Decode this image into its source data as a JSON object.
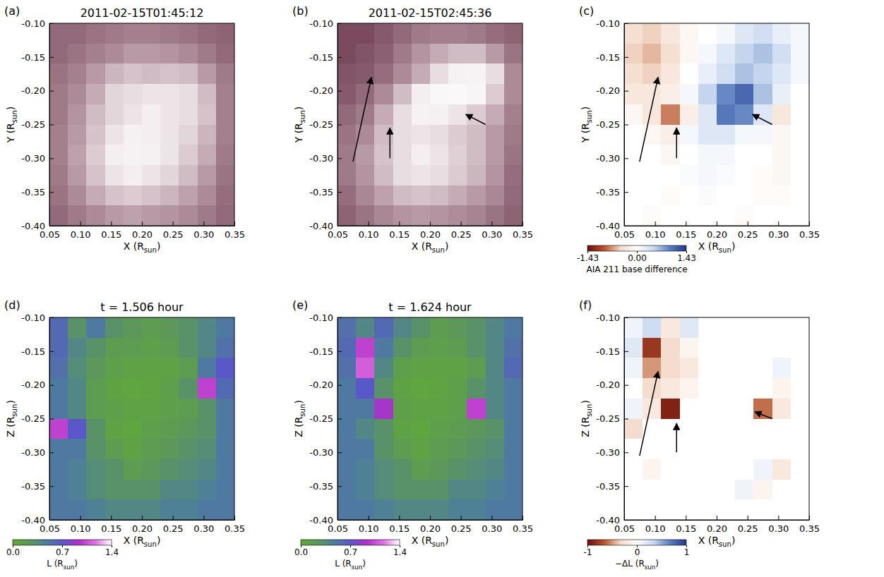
{
  "chart_data": [
    {
      "type": "heatmap",
      "label": "(a)",
      "title": "2011-02-15T01:45:12",
      "xlabel": [
        "X (R",
        "sun",
        ")"
      ],
      "ylabel": [
        "Y (R",
        "sun",
        ")"
      ],
      "xlim": [
        0.05,
        0.35
      ],
      "ylim": [
        -0.4,
        -0.1
      ],
      "xticks": [
        0.05,
        {
          "value": 0.1,
          "label": "0.10"
        },
        0.15,
        {
          "value": 0.2,
          "label": "0.20"
        },
        0.25,
        {
          "value": 0.3,
          "label": "0.30"
        },
        0.35
      ],
      "yticks": [
        {
          "value": -0.4,
          "label": "-0.40"
        },
        -0.35,
        {
          "value": -0.3,
          "label": "-0.30"
        },
        -0.25,
        {
          "value": -0.2,
          "label": "-0.20"
        },
        -0.15,
        {
          "value": -0.1,
          "label": "-0.10"
        }
      ],
      "clim": [
        0,
        1
      ],
      "colors": [
        "#3a1a28",
        "#7a4a5e",
        "#b89aa6",
        "#f4eef0",
        "#ffffff"
      ],
      "cells": [
        [
          0.35,
          0.35,
          0.38,
          0.4,
          0.42,
          0.42,
          0.4,
          0.38,
          0.35,
          0.33
        ],
        [
          0.35,
          0.38,
          0.42,
          0.45,
          0.5,
          0.5,
          0.48,
          0.45,
          0.4,
          0.35
        ],
        [
          0.38,
          0.42,
          0.5,
          0.58,
          0.62,
          0.6,
          0.62,
          0.6,
          0.5,
          0.4
        ],
        [
          0.4,
          0.45,
          0.55,
          0.68,
          0.7,
          0.72,
          0.72,
          0.7,
          0.6,
          0.42
        ],
        [
          0.4,
          0.48,
          0.6,
          0.68,
          0.72,
          0.75,
          0.72,
          0.7,
          0.62,
          0.42
        ],
        [
          0.42,
          0.5,
          0.62,
          0.72,
          0.78,
          0.75,
          0.72,
          0.68,
          0.58,
          0.42
        ],
        [
          0.42,
          0.52,
          0.65,
          0.75,
          0.8,
          0.78,
          0.72,
          0.65,
          0.55,
          0.4
        ],
        [
          0.4,
          0.5,
          0.62,
          0.72,
          0.75,
          0.72,
          0.68,
          0.6,
          0.5,
          0.38
        ],
        [
          0.38,
          0.45,
          0.55,
          0.62,
          0.65,
          0.62,
          0.58,
          0.52,
          0.45,
          0.36
        ],
        [
          0.35,
          0.4,
          0.45,
          0.5,
          0.52,
          0.5,
          0.48,
          0.45,
          0.4,
          0.35
        ]
      ]
    },
    {
      "type": "heatmap",
      "label": "(b)",
      "title": "2011-02-15T02:45:36",
      "xlabel": [
        "X (R",
        "sun",
        ")"
      ],
      "ylabel": [
        "Y (R",
        "sun",
        ")"
      ],
      "xlim": [
        0.05,
        0.35
      ],
      "ylim": [
        -0.4,
        -0.1
      ],
      "xticks": [
        0.05,
        {
          "value": 0.1,
          "label": "0.10"
        },
        0.15,
        {
          "value": 0.2,
          "label": "0.20"
        },
        0.25,
        {
          "value": 0.3,
          "label": "0.30"
        },
        0.35
      ],
      "yticks": [
        {
          "value": -0.4,
          "label": "-0.40"
        },
        -0.35,
        {
          "value": -0.3,
          "label": "-0.30"
        },
        -0.25,
        {
          "value": -0.2,
          "label": "-0.20"
        },
        -0.15,
        {
          "value": -0.1,
          "label": "-0.10"
        }
      ],
      "clim": [
        0,
        1
      ],
      "colors": [
        "#3a1a28",
        "#7a4a5e",
        "#b89aa6",
        "#f4eef0",
        "#ffffff"
      ],
      "cells": [
        [
          0.25,
          0.25,
          0.3,
          0.35,
          0.4,
          0.42,
          0.42,
          0.4,
          0.36,
          0.33
        ],
        [
          0.25,
          0.28,
          0.32,
          0.4,
          0.48,
          0.55,
          0.6,
          0.6,
          0.5,
          0.38
        ],
        [
          0.28,
          0.3,
          0.36,
          0.45,
          0.55,
          0.7,
          0.8,
          0.82,
          0.7,
          0.45
        ],
        [
          0.3,
          0.35,
          0.45,
          0.6,
          0.75,
          0.88,
          0.9,
          0.85,
          0.65,
          0.45
        ],
        [
          0.35,
          0.4,
          0.55,
          0.7,
          0.8,
          0.78,
          0.72,
          0.65,
          0.55,
          0.42
        ],
        [
          0.38,
          0.45,
          0.6,
          0.7,
          0.72,
          0.7,
          0.65,
          0.6,
          0.5,
          0.4
        ],
        [
          0.4,
          0.5,
          0.62,
          0.7,
          0.75,
          0.72,
          0.66,
          0.6,
          0.5,
          0.38
        ],
        [
          0.4,
          0.48,
          0.6,
          0.7,
          0.72,
          0.7,
          0.65,
          0.58,
          0.48,
          0.36
        ],
        [
          0.36,
          0.44,
          0.52,
          0.6,
          0.62,
          0.6,
          0.55,
          0.5,
          0.44,
          0.35
        ],
        [
          0.33,
          0.38,
          0.44,
          0.48,
          0.5,
          0.48,
          0.46,
          0.43,
          0.38,
          0.33
        ]
      ],
      "arrows": [
        [
          0.075,
          -0.305,
          0.105,
          -0.18
        ],
        [
          0.135,
          -0.3,
          0.135,
          -0.255
        ],
        [
          0.29,
          -0.25,
          0.258,
          -0.235
        ]
      ]
    },
    {
      "type": "heatmap",
      "label": "(c)",
      "xlabel": [
        "X (R",
        "sun",
        ")"
      ],
      "ylabel": [
        "Y (R",
        "sun",
        ")"
      ],
      "xlim": [
        0.05,
        0.35
      ],
      "ylim": [
        -0.4,
        -0.1
      ],
      "xticks": [
        0.05,
        {
          "value": 0.1,
          "label": "0.10"
        },
        0.15,
        {
          "value": 0.2,
          "label": "0.20"
        },
        0.25,
        {
          "value": 0.3,
          "label": "0.30"
        },
        0.35
      ],
      "yticks": [
        {
          "value": -0.4,
          "label": "-0.40"
        },
        -0.35,
        {
          "value": -0.3,
          "label": "-0.30"
        },
        -0.25,
        {
          "value": -0.2,
          "label": "-0.20"
        },
        -0.15,
        {
          "value": -0.1,
          "label": "-0.10"
        }
      ],
      "colorbar": {
        "lim": [
          -1.43,
          1.43
        ],
        "ticks": [
          -1.43,
          {
            "value": 0,
            "label": "0.00"
          },
          1.43
        ],
        "label": [
          "AIA 211 base difference"
        ]
      },
      "colors": [
        "#6b0d0d",
        "#b5542c",
        "#f3d9c8",
        "#ffffff",
        "#c9d9ef",
        "#5a7fc0",
        "#26358a"
      ],
      "cells": [
        [
          -0.4,
          -0.5,
          -0.3,
          -0.1,
          0,
          0.1,
          0.3,
          0.4,
          0.2,
          0.1
        ],
        [
          -0.5,
          -0.6,
          -0.4,
          -0.1,
          0.1,
          0.3,
          0.5,
          0.6,
          0.4,
          0.1
        ],
        [
          -0.4,
          -0.5,
          -0.3,
          0,
          0.2,
          0.4,
          0.6,
          0.5,
          0.3,
          0.1
        ],
        [
          -0.3,
          -0.3,
          -0.2,
          0.1,
          0.5,
          0.9,
          1.1,
          0.6,
          0.2,
          0
        ],
        [
          -0.1,
          -0.3,
          -0.8,
          -0.2,
          0.3,
          1.0,
          0.9,
          0.3,
          -0.3,
          0
        ],
        [
          0,
          -0.1,
          -0.2,
          0.1,
          0.3,
          0.3,
          0.1,
          0.1,
          -0.1,
          0
        ],
        [
          0,
          0,
          -0.1,
          0,
          0.1,
          0.1,
          0,
          0,
          -0.1,
          0
        ],
        [
          0,
          0,
          0,
          0.05,
          0.1,
          0.05,
          0,
          -0.05,
          -0.1,
          0
        ],
        [
          0,
          0,
          -0.05,
          0,
          0.05,
          0,
          0,
          -0.05,
          -0.05,
          0
        ],
        [
          0,
          -0.05,
          0,
          0,
          0,
          0,
          -0.05,
          0,
          0,
          0
        ]
      ],
      "arrows": [
        [
          0.075,
          -0.305,
          0.105,
          -0.18
        ],
        [
          0.135,
          -0.3,
          0.135,
          -0.255
        ],
        [
          0.29,
          -0.25,
          0.258,
          -0.235
        ]
      ]
    },
    {
      "type": "heatmap",
      "label": "(d)",
      "title": "t = 1.506 hour",
      "xlabel": [
        "X (R",
        "sun",
        ")"
      ],
      "ylabel": [
        "Z (R",
        "sun",
        ")"
      ],
      "xlim": [
        0.05,
        0.35
      ],
      "ylim": [
        -0.4,
        -0.1
      ],
      "xticks": [
        0.05,
        {
          "value": 0.1,
          "label": "0.10"
        },
        0.15,
        {
          "value": 0.2,
          "label": "0.20"
        },
        0.25,
        {
          "value": 0.3,
          "label": "0.30"
        },
        0.35
      ],
      "yticks": [
        {
          "value": -0.4,
          "label": "-0.40"
        },
        -0.35,
        {
          "value": -0.3,
          "label": "-0.30"
        },
        -0.25,
        {
          "value": -0.2,
          "label": "-0.20"
        },
        -0.15,
        {
          "value": -0.1,
          "label": "-0.10"
        }
      ],
      "colorbar": {
        "lim": [
          0,
          1.4
        ],
        "ticks": [
          {
            "value": 0,
            "label": "0.0"
          },
          0.7,
          1.4
        ],
        "label": [
          "L (R",
          "sun",
          ")"
        ]
      },
      "colors": [
        "#5fa83a",
        "#5e9a55",
        "#4d7f9a",
        "#5a58c8",
        "#b030c8",
        "#e070e0",
        "#ffffff"
      ],
      "cells": [
        [
          0.6,
          0.3,
          0.5,
          0.3,
          0.25,
          0.2,
          0.25,
          0.3,
          0.4,
          0.5
        ],
        [
          0.6,
          0.4,
          0.3,
          0.2,
          0.2,
          0.15,
          0.2,
          0.3,
          0.4,
          0.55
        ],
        [
          0.55,
          0.35,
          0.25,
          0.15,
          0.1,
          0.1,
          0.1,
          0.2,
          0.5,
          0.7
        ],
        [
          0.5,
          0.4,
          0.2,
          0.1,
          0.05,
          0.08,
          0.15,
          0.3,
          1.0,
          0.6
        ],
        [
          0.5,
          0.4,
          0.2,
          0.15,
          0.1,
          0.1,
          0.15,
          0.2,
          0.3,
          0.5
        ],
        [
          1.0,
          0.7,
          0.3,
          0.1,
          0.05,
          0.15,
          0.2,
          0.25,
          0.3,
          0.5
        ],
        [
          0.5,
          0.5,
          0.3,
          0.2,
          0.1,
          0.2,
          0.25,
          0.3,
          0.35,
          0.5
        ],
        [
          0.5,
          0.45,
          0.35,
          0.3,
          0.2,
          0.25,
          0.3,
          0.35,
          0.4,
          0.5
        ],
        [
          0.5,
          0.45,
          0.35,
          0.3,
          0.3,
          0.3,
          0.4,
          0.4,
          0.45,
          0.5
        ],
        [
          0.5,
          0.5,
          0.45,
          0.4,
          0.4,
          0.4,
          0.45,
          0.45,
          0.5,
          0.5
        ]
      ]
    },
    {
      "type": "heatmap",
      "label": "(e)",
      "title": "t = 1.624 hour",
      "xlabel": [
        "X (R",
        "sun",
        ")"
      ],
      "ylabel": [
        "Z (R",
        "sun",
        ")"
      ],
      "xlim": [
        0.05,
        0.35
      ],
      "ylim": [
        -0.4,
        -0.1
      ],
      "xticks": [
        0.05,
        {
          "value": 0.1,
          "label": "0.10"
        },
        0.15,
        {
          "value": 0.2,
          "label": "0.20"
        },
        0.25,
        {
          "value": 0.3,
          "label": "0.30"
        },
        0.35
      ],
      "yticks": [
        {
          "value": -0.4,
          "label": "-0.40"
        },
        -0.35,
        {
          "value": -0.3,
          "label": "-0.30"
        },
        -0.25,
        {
          "value": -0.2,
          "label": "-0.20"
        },
        -0.15,
        {
          "value": -0.1,
          "label": "-0.10"
        }
      ],
      "colorbar": {
        "lim": [
          0,
          1.4
        ],
        "ticks": [
          {
            "value": 0,
            "label": "0.0"
          },
          0.7,
          1.4
        ],
        "label": [
          "L (R",
          "sun",
          ")"
        ]
      },
      "colors": [
        "#5fa83a",
        "#5e9a55",
        "#4d7f9a",
        "#5a58c8",
        "#b030c8",
        "#e070e0",
        "#ffffff"
      ],
      "cells": [
        [
          0.55,
          0.4,
          0.6,
          0.4,
          0.3,
          0.2,
          0.25,
          0.3,
          0.4,
          0.5
        ],
        [
          0.6,
          1.0,
          0.5,
          0.3,
          0.2,
          0.15,
          0.2,
          0.3,
          0.4,
          0.55
        ],
        [
          0.55,
          1.1,
          0.4,
          0.15,
          0.1,
          0.1,
          0.1,
          0.2,
          0.4,
          0.6
        ],
        [
          0.5,
          0.7,
          0.3,
          0.1,
          0.05,
          0.08,
          0.15,
          0.3,
          0.4,
          0.5
        ],
        [
          0.5,
          0.5,
          0.9,
          0.15,
          0.1,
          0.1,
          0.15,
          1.0,
          0.4,
          0.5
        ],
        [
          0.5,
          0.4,
          0.3,
          0.1,
          0.05,
          0.15,
          0.2,
          0.25,
          0.3,
          0.5
        ],
        [
          0.5,
          0.5,
          0.3,
          0.2,
          0.1,
          0.2,
          0.25,
          0.3,
          0.35,
          0.5
        ],
        [
          0.5,
          0.45,
          0.35,
          0.3,
          0.2,
          0.25,
          0.3,
          0.35,
          0.4,
          0.5
        ],
        [
          0.5,
          0.45,
          0.35,
          0.3,
          0.3,
          0.3,
          0.4,
          0.4,
          0.45,
          0.5
        ],
        [
          0.5,
          0.5,
          0.45,
          0.4,
          0.4,
          0.4,
          0.45,
          0.45,
          0.5,
          0.5
        ]
      ]
    },
    {
      "type": "heatmap",
      "label": "(f)",
      "xlabel": [
        "X (R",
        "sun",
        ")"
      ],
      "ylabel": [
        "Z (R",
        "sun",
        ")"
      ],
      "xlim": [
        0.05,
        0.35
      ],
      "ylim": [
        -0.4,
        -0.1
      ],
      "xticks": [
        0.05,
        {
          "value": 0.1,
          "label": "0.10"
        },
        0.15,
        {
          "value": 0.2,
          "label": "0.20"
        },
        0.25,
        {
          "value": 0.3,
          "label": "0.30"
        },
        0.35
      ],
      "yticks": [
        {
          "value": -0.4,
          "label": "-0.40"
        },
        -0.35,
        {
          "value": -0.3,
          "label": "-0.30"
        },
        -0.25,
        {
          "value": -0.2,
          "label": "-0.20"
        },
        -0.15,
        {
          "value": -0.1,
          "label": "-0.10"
        }
      ],
      "colorbar": {
        "lim": [
          -1,
          1
        ],
        "ticks": [
          -1,
          0,
          1
        ],
        "label": [
          "−ΔL (R",
          "sun",
          ")"
        ]
      },
      "colors": [
        "#6b0d0d",
        "#b5542c",
        "#f3d9c8",
        "#ffffff",
        "#c9d9ef",
        "#5a7fc0",
        "#26358a"
      ],
      "cells": [
        [
          0.1,
          0.3,
          -0.2,
          0.2,
          0,
          0,
          0,
          0,
          0,
          0
        ],
        [
          0.2,
          -0.8,
          -0.3,
          -0.1,
          0,
          0,
          0,
          0,
          0,
          0
        ],
        [
          0.1,
          -0.5,
          -0.3,
          -0.2,
          0,
          0,
          0,
          0,
          0.1,
          0
        ],
        [
          0,
          -0.3,
          -0.2,
          -0.1,
          0,
          0,
          0,
          0,
          -0.1,
          0
        ],
        [
          0.1,
          -0.2,
          -0.9,
          0,
          0,
          0,
          0,
          -0.6,
          -0.2,
          0
        ],
        [
          -0.3,
          0,
          0,
          0,
          0,
          0,
          0,
          0,
          0,
          0
        ],
        [
          0,
          0,
          0,
          0,
          0,
          0,
          0,
          0,
          0,
          0
        ],
        [
          0,
          -0.1,
          0,
          0,
          0,
          0,
          0,
          0.1,
          -0.2,
          0
        ],
        [
          0,
          0,
          0,
          0,
          0,
          0,
          0.1,
          -0.1,
          0,
          0
        ],
        [
          0,
          0,
          0,
          0,
          0,
          0,
          0,
          0,
          0,
          0
        ]
      ],
      "arrows": [
        [
          0.075,
          -0.305,
          0.105,
          -0.18
        ],
        [
          0.135,
          -0.3,
          0.135,
          -0.257
        ],
        [
          0.29,
          -0.25,
          0.262,
          -0.24
        ]
      ]
    }
  ]
}
